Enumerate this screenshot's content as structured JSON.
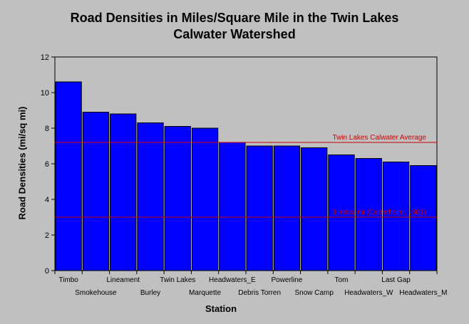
{
  "chart_data": {
    "type": "bar",
    "title_lines": [
      "Road Densities in Miles/Square Mile in the Twin Lakes",
      "Calwater Watershed"
    ],
    "xlabel": "Station",
    "ylabel": "Road Densities (mi/sq mi)",
    "ylim": [
      0,
      12
    ],
    "yticks": [
      "0",
      "2",
      "4",
      "6",
      "8",
      "10",
      "12"
    ],
    "categories": [
      "Timbo",
      "Smokehouse",
      "Lineament",
      "Burley",
      "Twin Lakes",
      "Marquette",
      "Headwaters_E",
      "Debris Torren",
      "Powerline",
      "Snow Camp",
      "Tom",
      "Headwaters_W",
      "Last Gap",
      "Headwaters_M"
    ],
    "values": [
      10.6,
      8.9,
      8.8,
      8.3,
      8.1,
      8.0,
      7.2,
      7.0,
      7.0,
      6.9,
      6.5,
      6.3,
      6.1,
      5.9
    ],
    "reference_lines": [
      {
        "value": 7.2,
        "label": "Twin Lakes Calwater Average"
      },
      {
        "value": 3.0,
        "label": "3 mi/sq mi (Cederholm, 1981)"
      }
    ],
    "grid": false,
    "colors": {
      "bar": "#0000ff",
      "reference_line": "#cc0000",
      "plot_background": "#c0c0c0"
    }
  }
}
